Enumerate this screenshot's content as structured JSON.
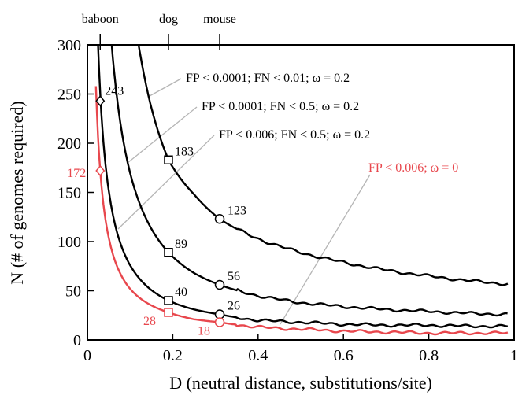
{
  "chart_data": {
    "type": "line",
    "xlabel": "D (neutral distance, substitutions/site)",
    "ylabel": "N (# of genomes required)",
    "xlim": [
      0,
      1
    ],
    "ylim": [
      0,
      300
    ],
    "x_ticks": [
      0,
      0.2,
      0.4,
      0.6,
      0.8,
      1
    ],
    "x_tick_labels": [
      "0",
      "0.2",
      "0.4",
      "0.6",
      "0.8",
      "1"
    ],
    "y_ticks": [
      0,
      50,
      100,
      150,
      200,
      250,
      300
    ],
    "y_tick_labels": [
      "0",
      "50",
      "100",
      "150",
      "200",
      "250",
      "300"
    ],
    "grid": false,
    "top_axis_markers": [
      {
        "label": "baboon",
        "x": 0.03
      },
      {
        "label": "dog",
        "x": 0.19
      },
      {
        "label": "mouse",
        "x": 0.31
      }
    ],
    "series": [
      {
        "name": "FP < 0.0001; FN < 0.01; ω = 0.2",
        "color": "#000000",
        "k": 35,
        "floor": 57,
        "x": [
          0.12,
          0.15,
          0.19,
          0.25,
          0.31,
          0.4,
          0.5,
          0.6,
          0.7,
          0.8,
          0.9,
          0.98
        ],
        "y": [
          300,
          236,
          183,
          148,
          123,
          103,
          89,
          79,
          71,
          65,
          60,
          57
        ],
        "points": [
          {
            "x": 0.19,
            "y": 183,
            "label": "183",
            "marker": "square"
          },
          {
            "x": 0.31,
            "y": 123,
            "label": "123",
            "marker": "circle"
          }
        ]
      },
      {
        "name": "FP < 0.0001; FN < 0.5; ω = 0.2",
        "color": "#000000",
        "k": 17,
        "floor": 26,
        "x": [
          0.057,
          0.1,
          0.19,
          0.25,
          0.31,
          0.4,
          0.5,
          0.6,
          0.7,
          0.8,
          0.9,
          0.98
        ],
        "y": [
          300,
          170,
          89,
          68,
          56,
          45,
          38,
          34,
          31,
          29,
          27,
          26
        ],
        "points": [
          {
            "x": 0.03,
            "y": 243,
            "label": "243",
            "marker": "diamond"
          },
          {
            "x": 0.19,
            "y": 89,
            "label": "89",
            "marker": "square"
          },
          {
            "x": 0.31,
            "y": 56,
            "label": "56",
            "marker": "circle"
          }
        ]
      },
      {
        "name": "FP < 0.006; FN < 0.5; ω = 0.2",
        "color": "#000000",
        "k": 7.6,
        "floor": 14,
        "x": [
          0.025,
          0.05,
          0.1,
          0.19,
          0.25,
          0.31,
          0.4,
          0.5,
          0.6,
          0.7,
          0.8,
          0.9,
          0.98
        ],
        "y": [
          300,
          152,
          76,
          40,
          31,
          26,
          20,
          18,
          16,
          15,
          15,
          14,
          14
        ],
        "points": [
          {
            "x": 0.19,
            "y": 40,
            "label": "40",
            "marker": "square"
          },
          {
            "x": 0.31,
            "y": 26,
            "label": "26",
            "marker": "circle"
          }
        ]
      },
      {
        "name": "FP < 0.006; ω = 0",
        "color": "#e8474d",
        "k": 5.2,
        "floor": 7,
        "x": [
          0.02,
          0.03,
          0.05,
          0.1,
          0.19,
          0.25,
          0.31,
          0.4,
          0.5,
          0.6,
          0.7,
          0.8,
          0.9,
          0.98
        ],
        "y": [
          258,
          172,
          104,
          52,
          28,
          21,
          18,
          13,
          11,
          9,
          8,
          7,
          7,
          7
        ],
        "points": [
          {
            "x": 0.03,
            "y": 172,
            "label": "172",
            "marker": "diamond"
          },
          {
            "x": 0.19,
            "y": 28,
            "label": "28",
            "marker": "square"
          },
          {
            "x": 0.31,
            "y": 18,
            "label": "18",
            "marker": "circle"
          }
        ]
      }
    ]
  }
}
